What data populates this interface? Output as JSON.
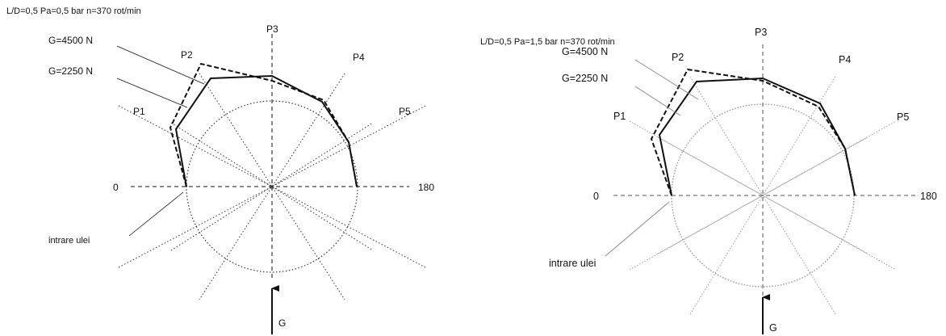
{
  "colors": {
    "ink": "#111111",
    "grid_dark": "#333333",
    "grid_light": "#9a9a9a",
    "leader_light": "#8c8c8c"
  },
  "diagrams": [
    {
      "condition": "L/D=0,5  Pa=0,5 bar  n=370 rot/min",
      "labels": {
        "p1": "P1",
        "p2": "P2",
        "p3": "P3",
        "p4": "P4",
        "p5": "P5",
        "zero": "0",
        "one_eighty": "180",
        "oil_inlet": "intrare ulei",
        "load": "G"
      },
      "legend": {
        "dashed": "G=4500 N",
        "solid": "G=2250 N"
      }
    },
    {
      "condition": "L/D=0,5  Pa=1,5 bar  n=370 rot/min",
      "labels": {
        "p1": "P1",
        "p2": "P2",
        "p3": "P3",
        "p4": "P4",
        "p5": "P5",
        "zero": "0",
        "one_eighty": "180",
        "oil_inlet": "intrare ulei",
        "load": "G"
      },
      "legend": {
        "dashed": "G=4500 N",
        "solid": "G=2250 N"
      }
    }
  ]
}
